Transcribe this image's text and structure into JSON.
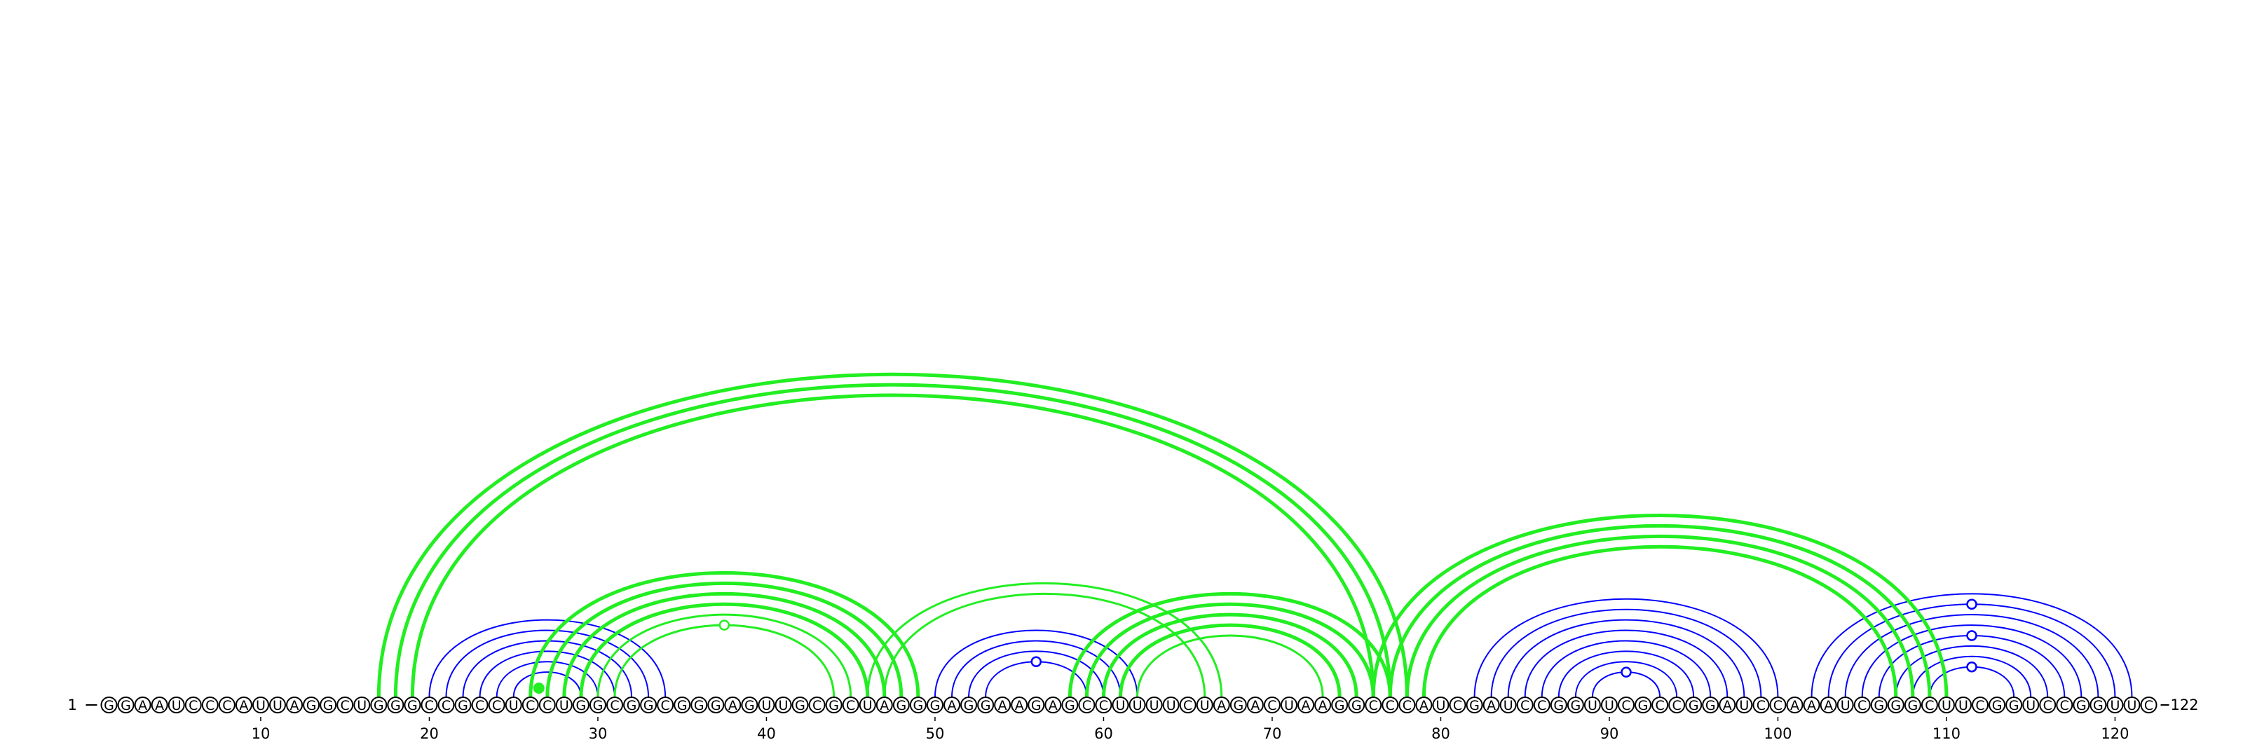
{
  "sequence": "GGAAUCCCAUUAGGCUGGGCCGCCUCCUGGCGGCGGGAGUUGCGCUAGGGAGGAAGAGCCUUUUCUAGACUAAGGCCCAUCGAUCCGGUUCGCCGGAUCCAAAUCGGGCUUCGGUCCGGUUC",
  "start_label": "1",
  "end_label": "122",
  "ticks": [
    10,
    20,
    30,
    40,
    50,
    60,
    70,
    80,
    90,
    100,
    110,
    120
  ],
  "colors": {
    "blue": "#0000ff",
    "green": "#22ee22",
    "base_stroke": "#000000"
  },
  "arc_groups": [
    {
      "color": "blue",
      "width": 2,
      "pairs": [
        [
          20,
          34
        ],
        [
          21,
          33
        ],
        [
          22,
          32
        ],
        [
          23,
          31
        ],
        [
          24,
          30
        ],
        [
          25,
          29
        ]
      ]
    },
    {
      "color": "blue",
      "width": 2,
      "pairs": [
        [
          50,
          62
        ],
        [
          51,
          61
        ],
        [
          52,
          60
        ],
        [
          53,
          59
        ]
      ]
    },
    {
      "color": "blue",
      "width": 2,
      "pairs": [
        [
          82,
          100
        ],
        [
          83,
          99
        ],
        [
          84,
          98
        ],
        [
          85,
          97
        ],
        [
          86,
          96
        ],
        [
          87,
          95
        ],
        [
          88,
          94
        ],
        [
          89,
          93
        ]
      ]
    },
    {
      "color": "blue",
      "width": 2,
      "pairs": [
        [
          102,
          121
        ],
        [
          103,
          120
        ],
        [
          104,
          119
        ],
        [
          105,
          118
        ],
        [
          106,
          117
        ],
        [
          107,
          116
        ],
        [
          108,
          115
        ],
        [
          109,
          114
        ]
      ]
    },
    {
      "color": "green",
      "width": 5,
      "pairs": [
        [
          17,
          78
        ],
        [
          18,
          77
        ],
        [
          19,
          76
        ]
      ]
    },
    {
      "color": "green",
      "width": 5,
      "pairs": [
        [
          26,
          49
        ],
        [
          27,
          48
        ],
        [
          28,
          47
        ],
        [
          29,
          46
        ]
      ]
    },
    {
      "color": "green",
      "width": 3,
      "pairs": [
        [
          30,
          45
        ],
        [
          31,
          44
        ]
      ]
    },
    {
      "color": "green",
      "width": 3,
      "pairs": [
        [
          46,
          67
        ],
        [
          47,
          66
        ]
      ]
    },
    {
      "color": "green",
      "width": 5,
      "pairs": [
        [
          58,
          77
        ],
        [
          59,
          76
        ],
        [
          60,
          75
        ],
        [
          61,
          74
        ]
      ]
    },
    {
      "color": "green",
      "width": 3,
      "pairs": [
        [
          62,
          73
        ]
      ]
    },
    {
      "color": "green",
      "width": 5,
      "pairs": [
        [
          76,
          110
        ],
        [
          77,
          109
        ],
        [
          78,
          108
        ],
        [
          79,
          107
        ]
      ]
    }
  ],
  "markers": [
    {
      "color": "green",
      "i": 31,
      "j": 44
    },
    {
      "color": "blue",
      "i": 53,
      "j": 59
    },
    {
      "color": "blue",
      "i": 89,
      "j": 93
    },
    {
      "color": "blue",
      "i": 103,
      "j": 120
    },
    {
      "color": "blue",
      "i": 106,
      "j": 117
    },
    {
      "color": "blue",
      "i": 109,
      "j": 114
    }
  ],
  "extra_nodes": [
    {
      "color": "green",
      "pos": 26.5
    }
  ]
}
